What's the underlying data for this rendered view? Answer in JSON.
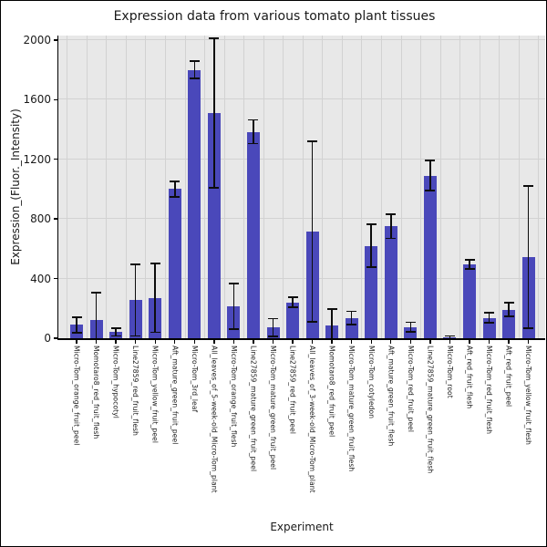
{
  "title": "Expression data from various tomato plant tissues",
  "axes": {
    "xlabel": "Experiment",
    "ylabel": "Expression_(Fluor._Intensity)"
  },
  "colors": {
    "bar_fill": "#4a48ba",
    "error_bar": "#0d0d0d",
    "plot_background": "#e8e8e8",
    "gridline": "#d2d2d2",
    "figure_background": "#ffffff",
    "text": "#1a1a1a"
  },
  "chart_data": {
    "type": "bar",
    "title": "Expression data from various tomato plant tissues",
    "xlabel": "Experiment",
    "ylabel": "Expression_(Fluor._Intensity)",
    "ylim": [
      0,
      2030
    ],
    "yticks": [
      0,
      400,
      800,
      1200,
      1600,
      2000
    ],
    "grid": true,
    "error_bars": true,
    "categories": [
      "Micro-Tom_orange_fruit_peel",
      "Momotaro8_red_fruit_flesh",
      "Micro-Tom_hypocotyl",
      "Line27859_red_fruit_flesh",
      "Micro-Tom_yellow_fruit_peel",
      "Aft_mature_green_fruit_peel",
      "Micro-Tom_3rd_leaf",
      "All_leaves_of_5-week-old_Micro-Tom_plant",
      "Micro-Tom_orange_fruit_flesh",
      "Line27859_mature_green_fruit_peel",
      "Micro-Tom_mature_green_fruit_peel",
      "Line27859_red_fruit_peel",
      "All_leaves_of_3-week-old_Micro-Tom_plant",
      "Momotaro8_red_fruit_peel",
      "Micro-Tom_mature_green_fruit_flesh",
      "Micro-Tom_cotyledon",
      "Aft_mature_green_fruit_flesh",
      "Micro-Tom_red_fruit_peel",
      "Line27859_mature_green_fruit_flesh",
      "Micro-Tom_root",
      "Aft_red_fruit_flesh",
      "Micro-Tom_red_fruit_flesh",
      "Aft_red_fruit_peel",
      "Micro-Tom_yellow_fruit_flesh"
    ],
    "values": [
      90,
      120,
      42,
      255,
      270,
      1000,
      1800,
      1510,
      215,
      1385,
      72,
      240,
      715,
      87,
      135,
      620,
      750,
      75,
      1090,
      8,
      495,
      137,
      192,
      545
    ],
    "errors": [
      52,
      185,
      26,
      240,
      230,
      50,
      57,
      500,
      152,
      80,
      60,
      33,
      605,
      110,
      45,
      145,
      80,
      32,
      100,
      8,
      31,
      34,
      46,
      478
    ]
  }
}
